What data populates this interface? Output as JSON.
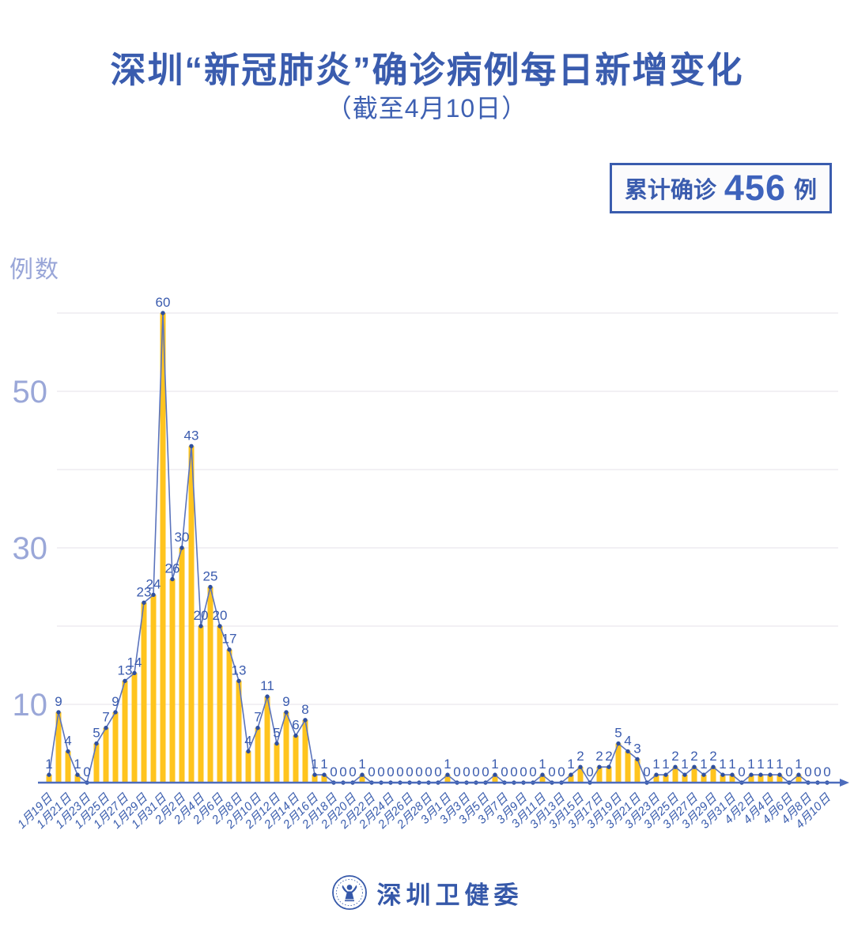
{
  "header": {
    "title": "深圳“新冠肺炎”确诊病例每日新增变化",
    "subtitle": "（截至4月10日）",
    "badge": {
      "label": "累计确诊",
      "value": "456",
      "unit": "例"
    }
  },
  "chart_data": {
    "type": "bar",
    "line_overlay": true,
    "title": "深圳“新冠肺炎”确诊病例每日新增变化（截至4月10日）",
    "xlabel": "",
    "ylabel": "例数",
    "ylim": [
      0,
      62
    ],
    "gridlines": [
      10,
      20,
      30,
      40,
      50,
      60
    ],
    "y_ticks_labeled": [
      10,
      30,
      50
    ],
    "x_tick_step": 2,
    "grid": "horizontal-only",
    "legend_position": "none",
    "cumulative_total": 456,
    "categories": [
      "1月19日",
      "1月20日",
      "1月21日",
      "1月22日",
      "1月23日",
      "1月24日",
      "1月25日",
      "1月26日",
      "1月27日",
      "1月28日",
      "1月29日",
      "1月30日",
      "1月31日",
      "2月1日",
      "2月2日",
      "2月3日",
      "2月4日",
      "2月5日",
      "2月6日",
      "2月7日",
      "2月8日",
      "2月9日",
      "2月10日",
      "2月11日",
      "2月12日",
      "2月13日",
      "2月14日",
      "2月15日",
      "2月16日",
      "2月17日",
      "2月18日",
      "2月19日",
      "2月20日",
      "2月21日",
      "2月22日",
      "2月23日",
      "2月24日",
      "2月25日",
      "2月26日",
      "2月27日",
      "2月28日",
      "2月29日",
      "3月1日",
      "3月2日",
      "3月3日",
      "3月4日",
      "3月5日",
      "3月6日",
      "3月7日",
      "3月8日",
      "3月9日",
      "3月10日",
      "3月11日",
      "3月12日",
      "3月13日",
      "3月14日",
      "3月15日",
      "3月16日",
      "3月17日",
      "3月18日",
      "3月19日",
      "3月20日",
      "3月21日",
      "3月22日",
      "3月23日",
      "3月24日",
      "3月25日",
      "3月26日",
      "3月27日",
      "3月28日",
      "3月29日",
      "3月30日",
      "3月31日",
      "4月1日",
      "4月2日",
      "4月3日",
      "4月4日",
      "4月5日",
      "4月6日",
      "4月7日",
      "4月8日",
      "4月9日",
      "4月10日"
    ],
    "values": [
      1,
      9,
      4,
      1,
      0,
      5,
      7,
      9,
      13,
      14,
      23,
      24,
      60,
      26,
      30,
      43,
      20,
      25,
      20,
      17,
      13,
      4,
      7,
      11,
      5,
      9,
      6,
      8,
      1,
      1,
      0,
      0,
      0,
      1,
      0,
      0,
      0,
      0,
      0,
      0,
      0,
      0,
      1,
      0,
      0,
      0,
      0,
      1,
      0,
      0,
      0,
      0,
      1,
      0,
      0,
      1,
      2,
      0,
      2,
      2,
      5,
      4,
      3,
      0,
      1,
      1,
      2,
      1,
      2,
      1,
      2,
      1,
      1,
      0,
      1,
      1,
      1,
      1,
      0,
      1,
      0,
      0,
      0
    ],
    "colors": {
      "bar": "#FFC41E",
      "line": "#5B74BC",
      "dot": "#2E4F9F",
      "value_label": "#3A5BAE",
      "axis_line": "#4C6CBC",
      "x_tick_text": "#3B5EAE",
      "y_tick_text": "#9AA7D8",
      "gridline": "#E9E8EE",
      "primary_blue": "#3A5CAE"
    }
  },
  "footer": {
    "logo_icon": "shenzhen-health-commission-seal-icon",
    "org_name": "深圳卫健委"
  }
}
